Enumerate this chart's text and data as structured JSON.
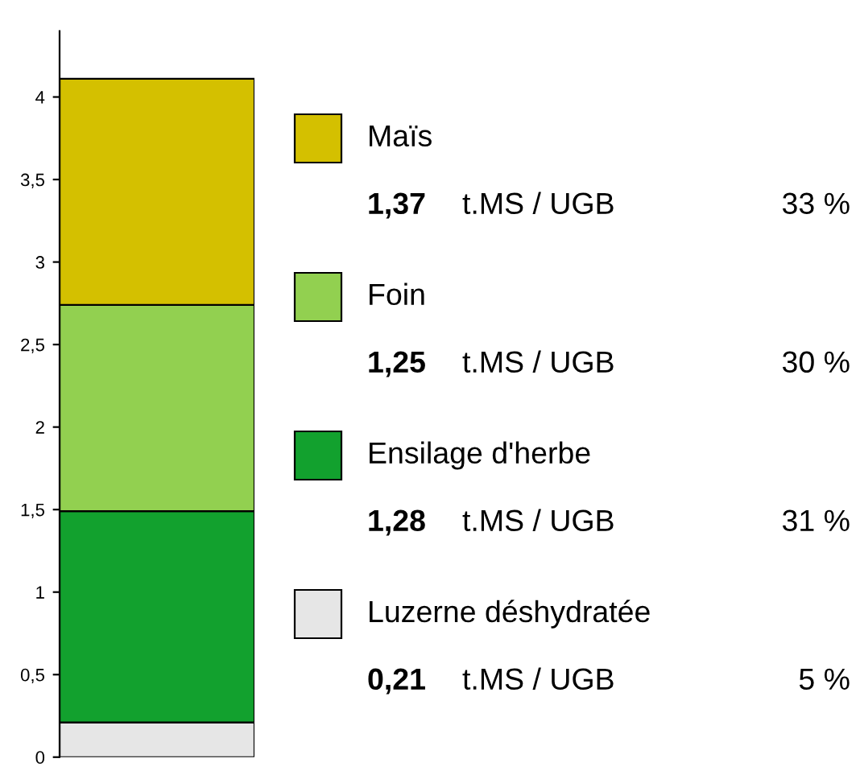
{
  "chart_data": {
    "type": "bar",
    "stacked": true,
    "categories": [
      null
    ],
    "series": [
      {
        "name": "Luzerne déshydratée",
        "color": "#e6e6e6",
        "values": [
          0.21
        ]
      },
      {
        "name": "Ensilage d'herbe",
        "color": "#12a12e",
        "values": [
          1.28
        ]
      },
      {
        "name": "Foin",
        "color": "#92d050",
        "values": [
          1.25
        ]
      },
      {
        "name": "Maïs",
        "color": "#d4c000",
        "values": [
          1.37
        ]
      }
    ],
    "annotations": [
      "0,21",
      "t.MS / UGB",
      "5 %",
      "1,28",
      "t.MS / UGB",
      "31 %",
      "1,25",
      "t.MS / UGB",
      "30 %",
      "1,37",
      "t.MS / UGB",
      "33 %"
    ],
    "ylim": [
      0,
      4.4
    ],
    "yticks": [
      0,
      {
        "value": 0.5,
        "label": "0,5"
      },
      1,
      {
        "value": 1.5,
        "label": "1,5"
      },
      2,
      {
        "value": 2.5,
        "label": "2,5"
      },
      3,
      {
        "value": 3.5,
        "label": "3,5"
      },
      4
    ],
    "grid": false,
    "legend": "right",
    "tick_labels": "y"
  }
}
